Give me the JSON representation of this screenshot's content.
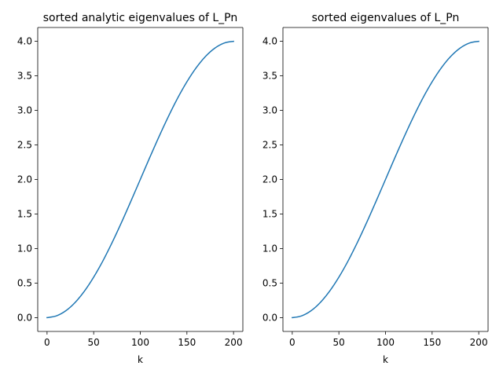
{
  "chart_data": [
    {
      "type": "line",
      "title": "sorted analytic eigenvalues of L_Pn",
      "xlabel": "k",
      "ylabel": "",
      "xlim": [
        -10,
        210
      ],
      "ylim": [
        -0.2,
        4.2
      ],
      "xticks": [
        0,
        50,
        100,
        150,
        200
      ],
      "xtick_labels": [
        "0",
        "50",
        "100",
        "150",
        "200"
      ],
      "yticks": [
        0.0,
        0.5,
        1.0,
        1.5,
        2.0,
        2.5,
        3.0,
        3.5,
        4.0
      ],
      "ytick_labels": [
        "0.0",
        "0.5",
        "1.0",
        "1.5",
        "2.0",
        "2.5",
        "3.0",
        "3.5",
        "4.0"
      ],
      "grid": false,
      "series": [
        {
          "color": "#1f77b4",
          "x": [
            0,
            10,
            20,
            30,
            40,
            50,
            60,
            70,
            80,
            90,
            100,
            110,
            120,
            130,
            140,
            150,
            160,
            170,
            180,
            190,
            200
          ],
          "y": [
            0.0,
            0.025,
            0.098,
            0.218,
            0.382,
            0.586,
            0.824,
            1.092,
            1.382,
            1.688,
            2.0,
            2.313,
            2.618,
            2.908,
            3.176,
            3.414,
            3.618,
            3.782,
            3.902,
            3.975,
            4.0
          ]
        }
      ]
    },
    {
      "type": "line",
      "title": "sorted eigenvalues of L_Pn",
      "xlabel": "k",
      "ylabel": "",
      "xlim": [
        -10,
        210
      ],
      "ylim": [
        -0.2,
        4.2
      ],
      "xticks": [
        0,
        50,
        100,
        150,
        200
      ],
      "xtick_labels": [
        "0",
        "50",
        "100",
        "150",
        "200"
      ],
      "yticks": [
        0.0,
        0.5,
        1.0,
        1.5,
        2.0,
        2.5,
        3.0,
        3.5,
        4.0
      ],
      "ytick_labels": [
        "0.0",
        "0.5",
        "1.0",
        "1.5",
        "2.0",
        "2.5",
        "3.0",
        "3.5",
        "4.0"
      ],
      "grid": false,
      "series": [
        {
          "color": "#1f77b4",
          "x": [
            0,
            10,
            20,
            30,
            40,
            50,
            60,
            70,
            80,
            90,
            100,
            110,
            120,
            130,
            140,
            150,
            160,
            170,
            180,
            190,
            200
          ],
          "y": [
            0.0,
            0.025,
            0.098,
            0.218,
            0.382,
            0.586,
            0.824,
            1.092,
            1.382,
            1.688,
            2.0,
            2.313,
            2.618,
            2.908,
            3.176,
            3.414,
            3.618,
            3.782,
            3.902,
            3.975,
            4.0
          ]
        }
      ]
    }
  ]
}
